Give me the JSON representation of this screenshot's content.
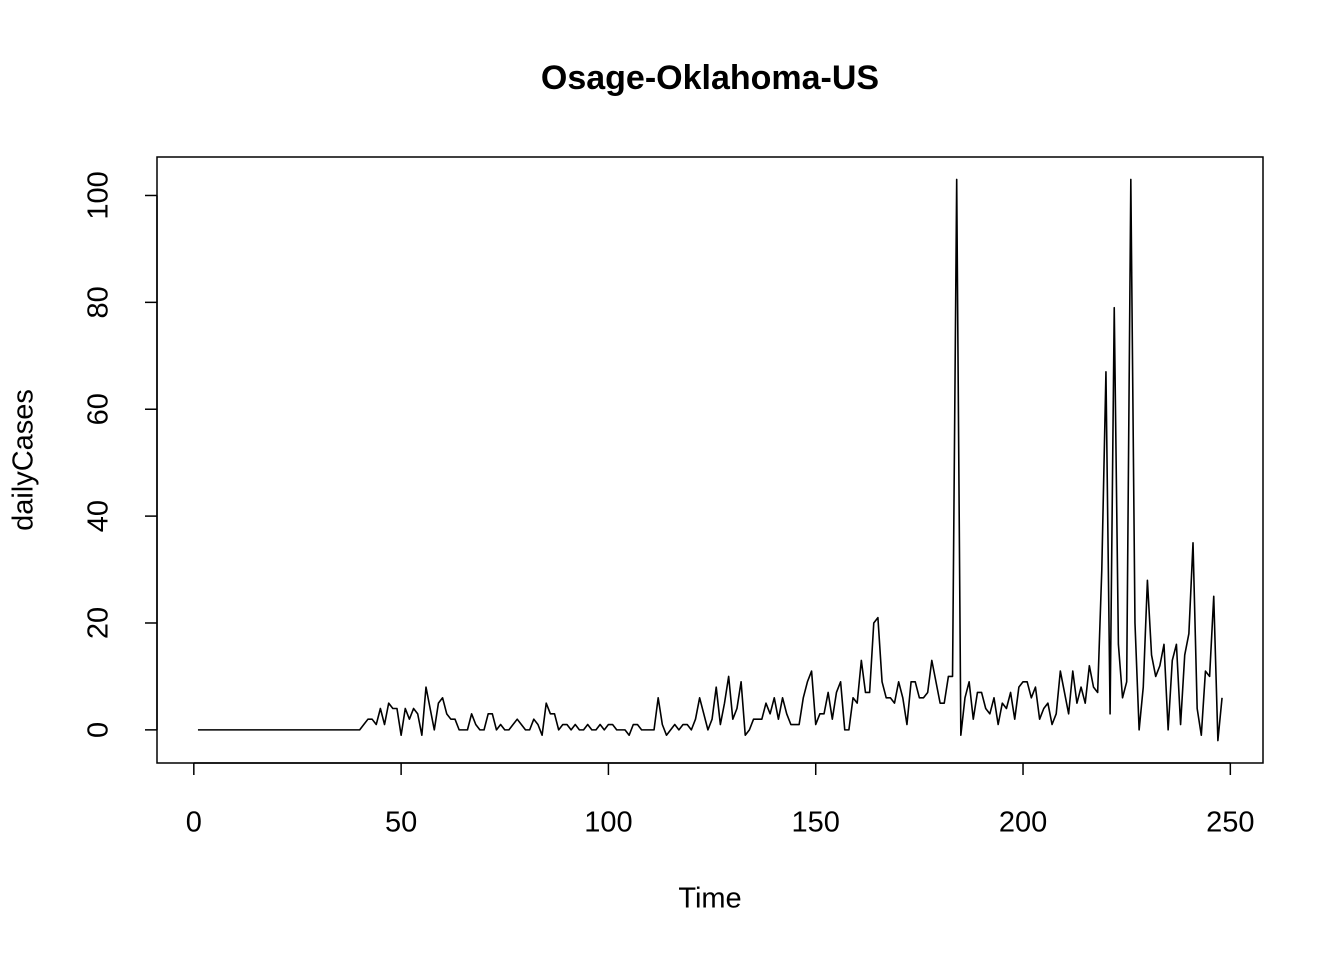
{
  "chart_data": {
    "type": "line",
    "title": "Osage-Oklahoma-US",
    "x_label": "Time",
    "y_label": "dailyCases",
    "x": [
      1,
      2,
      3,
      4,
      5,
      6,
      7,
      8,
      9,
      10,
      11,
      12,
      13,
      14,
      15,
      16,
      17,
      18,
      19,
      20,
      21,
      22,
      23,
      24,
      25,
      26,
      27,
      28,
      29,
      30,
      31,
      32,
      33,
      34,
      35,
      36,
      37,
      38,
      39,
      40,
      41,
      42,
      43,
      44,
      45,
      46,
      47,
      48,
      49,
      50,
      51,
      52,
      53,
      54,
      55,
      56,
      57,
      58,
      59,
      60,
      61,
      62,
      63,
      64,
      65,
      66,
      67,
      68,
      69,
      70,
      71,
      72,
      73,
      74,
      75,
      76,
      77,
      78,
      79,
      80,
      81,
      82,
      83,
      84,
      85,
      86,
      87,
      88,
      89,
      90,
      91,
      92,
      93,
      94,
      95,
      96,
      97,
      98,
      99,
      100,
      101,
      102,
      103,
      104,
      105,
      106,
      107,
      108,
      109,
      110,
      111,
      112,
      113,
      114,
      115,
      116,
      117,
      118,
      119,
      120,
      121,
      122,
      123,
      124,
      125,
      126,
      127,
      128,
      129,
      130,
      131,
      132,
      133,
      134,
      135,
      136,
      137,
      138,
      139,
      140,
      141,
      142,
      143,
      144,
      145,
      146,
      147,
      148,
      149,
      150,
      151,
      152,
      153,
      154,
      155,
      156,
      157,
      158,
      159,
      160,
      161,
      162,
      163,
      164,
      165,
      166,
      167,
      168,
      169,
      170,
      171,
      172,
      173,
      174,
      175,
      176,
      177,
      178,
      179,
      180,
      181,
      182,
      183,
      184,
      185,
      186,
      187,
      188,
      189,
      190,
      191,
      192,
      193,
      194,
      195,
      196,
      197,
      198,
      199,
      200,
      201,
      202,
      203,
      204,
      205,
      206,
      207,
      208,
      209,
      210,
      211,
      212,
      213,
      214,
      215,
      216,
      217,
      218,
      219,
      220,
      221,
      222,
      223,
      224,
      225,
      226,
      227,
      228,
      229,
      230,
      231,
      232,
      233,
      234,
      235,
      236,
      237,
      238,
      239,
      240,
      241,
      242,
      243,
      244,
      245,
      246,
      247,
      248
    ],
    "series": [
      {
        "name": "dailyCases",
        "color": "#000000",
        "values": [
          0,
          0,
          0,
          0,
          0,
          0,
          0,
          0,
          0,
          0,
          0,
          0,
          0,
          0,
          0,
          0,
          0,
          0,
          0,
          0,
          0,
          0,
          0,
          0,
          0,
          0,
          0,
          0,
          0,
          0,
          0,
          0,
          0,
          0,
          0,
          0,
          0,
          0,
          0,
          0,
          1,
          2,
          2,
          1,
          4,
          1,
          5,
          4,
          4,
          -1,
          4,
          2,
          4,
          3,
          -1,
          8,
          4,
          0,
          5,
          6,
          3,
          2,
          2,
          0,
          0,
          0,
          3,
          1,
          0,
          0,
          3,
          3,
          0,
          1,
          0,
          0,
          1,
          2,
          1,
          0,
          0,
          2,
          1,
          -1,
          5,
          3,
          3,
          0,
          1,
          1,
          0,
          1,
          0,
          0,
          1,
          0,
          0,
          1,
          0,
          1,
          1,
          0,
          0,
          0,
          -1,
          1,
          1,
          0,
          0,
          0,
          0,
          6,
          1,
          -1,
          0,
          1,
          0,
          1,
          1,
          0,
          2,
          6,
          3,
          0,
          2,
          8,
          1,
          5,
          10,
          2,
          4,
          9,
          -1,
          0,
          2,
          2,
          2,
          5,
          3,
          6,
          2,
          6,
          3,
          1,
          1,
          1,
          6,
          9,
          11,
          1,
          3,
          3,
          7,
          2,
          7,
          9,
          0,
          0,
          6,
          5,
          13,
          7,
          7,
          20,
          21,
          9,
          6,
          6,
          5,
          9,
          6,
          1,
          9,
          9,
          6,
          6,
          7,
          13,
          9,
          5,
          5,
          10,
          10,
          103,
          -1,
          6,
          9,
          2,
          7,
          7,
          4,
          3,
          6,
          1,
          5,
          4,
          7,
          2,
          8,
          9,
          9,
          6,
          8,
          2,
          4,
          5,
          1,
          3,
          11,
          7,
          3,
          11,
          5,
          8,
          5,
          12,
          8,
          7,
          30,
          67,
          3,
          79,
          16,
          6,
          9,
          103,
          20,
          0,
          8,
          28,
          14,
          10,
          12,
          16,
          0,
          13,
          16,
          1,
          14,
          18,
          35,
          4,
          -1,
          11,
          10,
          25,
          -2,
          6
        ]
      }
    ],
    "xlim": [
      -8.88,
      257.88
    ],
    "ylim": [
      -6.2,
      107.2
    ],
    "xticks": [
      0,
      50,
      100,
      150,
      200,
      250
    ],
    "yticks": [
      0,
      20,
      40,
      60,
      80,
      100
    ]
  }
}
